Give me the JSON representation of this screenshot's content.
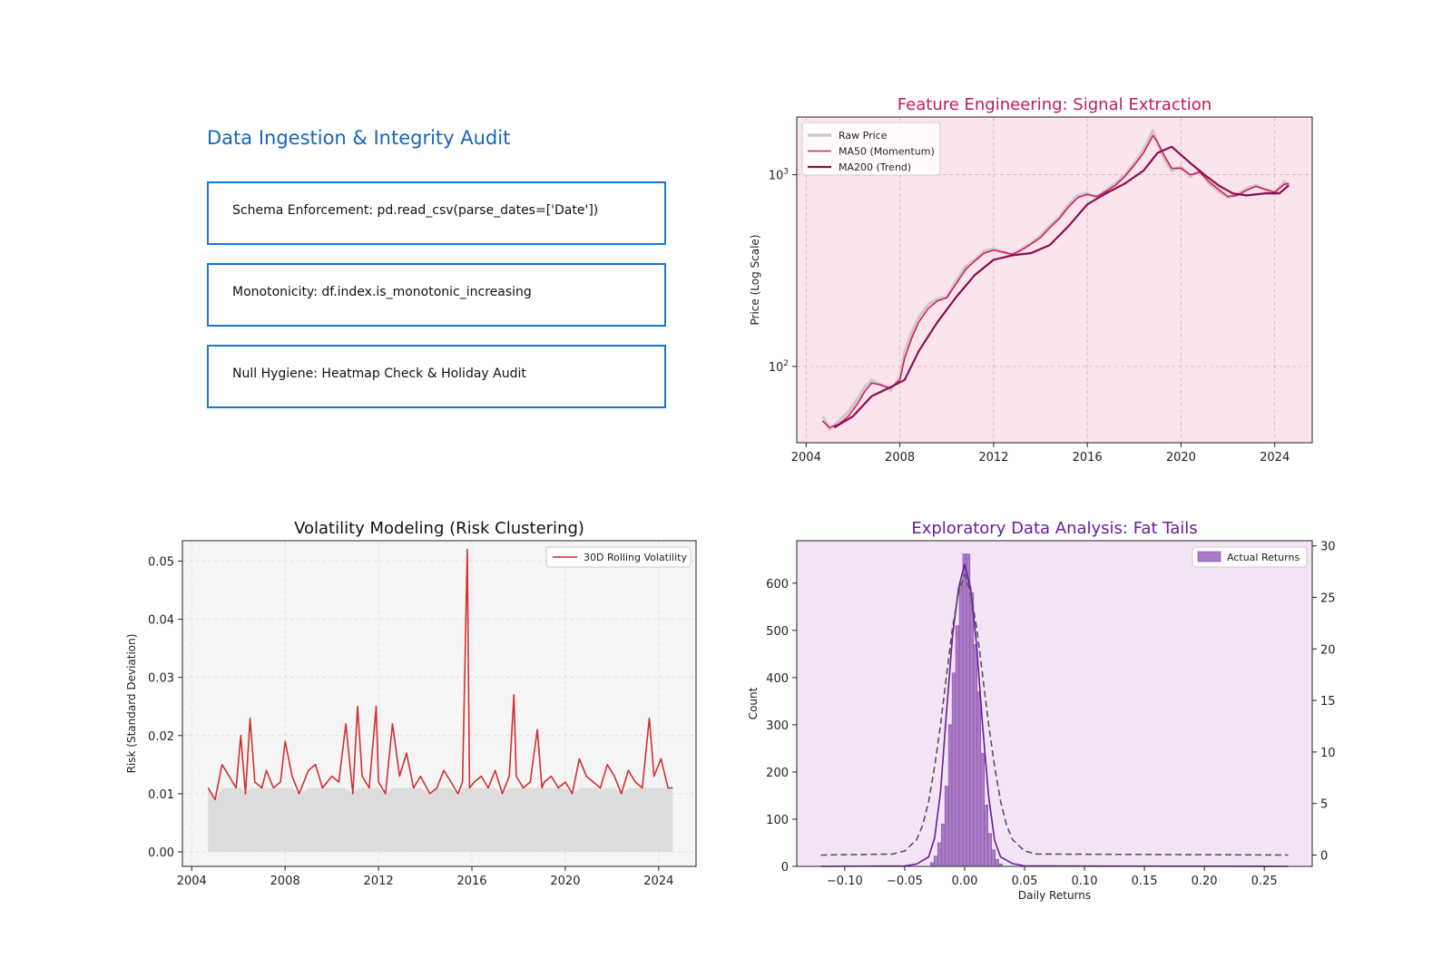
{
  "page": {
    "audit": {
      "title": "Data Ingestion & Integrity Audit",
      "checks": [
        "Schema Enforcement: pd.read_csv(parse_dates=['Date'])",
        "Monotonicity: df.index.is_monotonic_increasing",
        "Null Hygiene: Heatmap Check & Holiday Audit"
      ]
    }
  },
  "colors": {
    "audit_accent": "#1976d2",
    "feature_title": "#c2185b",
    "feature_bg": "#fce4ec",
    "raw_price": "#c9c9c9",
    "ma50": "#d81b60",
    "ma200": "#880e4f",
    "volatility_line": "#d32f2f",
    "volatility_fill": "#dddddd",
    "volatility_bg": "#f5f5f5",
    "eda_title": "#6a1b9a",
    "eda_bg": "#f3e5f5",
    "hist_fill": "#ab7bc8",
    "kde_line": "#6a1b9a",
    "normal_line": "#555555"
  },
  "chart_data": [
    {
      "type": "line",
      "id": "feature",
      "title": "Feature Engineering: Signal Extraction",
      "xlabel": "",
      "ylabel": "Price (Log Scale)",
      "yscale": "log",
      "xlim": [
        2003.6,
        2025.6
      ],
      "ylim": [
        40,
        2000
      ],
      "xticks": [
        2004,
        2008,
        2012,
        2016,
        2020,
        2024
      ],
      "yticks": [
        {
          "value": 100,
          "base": "10",
          "exp": "2"
        },
        {
          "value": 1000,
          "base": "10",
          "exp": "3"
        }
      ],
      "legend": [
        "Raw Price",
        "MA50 (Momentum)",
        "MA200 (Trend)"
      ],
      "series": [
        {
          "name": "Raw Price",
          "x": [
            2004.7,
            2005.0,
            2005.4,
            2005.8,
            2006.2,
            2006.5,
            2006.8,
            2007.2,
            2007.6,
            2008.0,
            2008.2,
            2008.5,
            2008.8,
            2009.2,
            2009.6,
            2010.0,
            2010.4,
            2010.8,
            2011.2,
            2011.6,
            2012.0,
            2012.4,
            2012.8,
            2013.2,
            2013.6,
            2014.0,
            2014.4,
            2014.8,
            2015.2,
            2015.6,
            2016.0,
            2016.4,
            2016.8,
            2017.2,
            2017.6,
            2018.0,
            2018.4,
            2018.8,
            2019.0,
            2019.3,
            2019.6,
            2020.0,
            2020.4,
            2020.8,
            2021.2,
            2021.6,
            2022.0,
            2022.4,
            2022.8,
            2023.2,
            2023.6,
            2024.0,
            2024.4,
            2024.6
          ],
          "y": [
            55,
            47,
            52,
            58,
            68,
            78,
            85,
            80,
            75,
            88,
            120,
            150,
            180,
            210,
            225,
            230,
            280,
            330,
            360,
            400,
            410,
            395,
            380,
            410,
            440,
            480,
            540,
            600,
            700,
            780,
            800,
            760,
            830,
            900,
            1000,
            1150,
            1350,
            1700,
            1450,
            1200,
            1050,
            1100,
            980,
            1050,
            900,
            820,
            760,
            790,
            850,
            880,
            830,
            800,
            920,
            880
          ]
        },
        {
          "name": "MA50 (Momentum)",
          "x": [
            2004.7,
            2005.0,
            2005.4,
            2005.8,
            2006.2,
            2006.5,
            2006.8,
            2007.2,
            2007.6,
            2008.0,
            2008.2,
            2008.5,
            2008.8,
            2009.2,
            2009.6,
            2010.0,
            2010.4,
            2010.8,
            2011.2,
            2011.6,
            2012.0,
            2012.4,
            2012.8,
            2013.2,
            2013.6,
            2014.0,
            2014.4,
            2014.8,
            2015.2,
            2015.6,
            2016.0,
            2016.4,
            2016.8,
            2017.2,
            2017.6,
            2018.0,
            2018.4,
            2018.8,
            2019.0,
            2019.3,
            2019.6,
            2020.0,
            2020.4,
            2020.8,
            2021.2,
            2021.6,
            2022.0,
            2022.4,
            2022.8,
            2023.2,
            2023.6,
            2024.0,
            2024.4,
            2024.6
          ],
          "y": [
            52,
            48,
            50,
            55,
            64,
            74,
            82,
            80,
            77,
            85,
            110,
            140,
            170,
            200,
            220,
            228,
            270,
            320,
            355,
            390,
            405,
            395,
            385,
            405,
            435,
            470,
            530,
            590,
            680,
            760,
            790,
            770,
            820,
            880,
            980,
            1120,
            1300,
            1600,
            1480,
            1250,
            1080,
            1080,
            1000,
            1030,
            920,
            840,
            770,
            780,
            830,
            870,
            840,
            810,
            890,
            900
          ]
        },
        {
          "name": "MA200 (Trend)",
          "x": [
            2005.2,
            2006.0,
            2006.8,
            2007.6,
            2008.2,
            2008.8,
            2009.6,
            2010.4,
            2011.2,
            2012.0,
            2012.8,
            2013.6,
            2014.4,
            2015.2,
            2016.0,
            2016.8,
            2017.6,
            2018.4,
            2019.0,
            2019.6,
            2020.4,
            2021.0,
            2021.6,
            2022.2,
            2022.8,
            2023.6,
            2024.2,
            2024.6
          ],
          "y": [
            48,
            55,
            70,
            78,
            85,
            120,
            170,
            230,
            300,
            360,
            380,
            390,
            430,
            540,
            700,
            800,
            900,
            1050,
            1300,
            1400,
            1150,
            1000,
            880,
            800,
            780,
            800,
            800,
            880
          ]
        }
      ]
    },
    {
      "type": "area",
      "id": "volatility",
      "title": "Volatility Modeling (Risk Clustering)",
      "xlabel": "",
      "ylabel": "Risk (Standard Deviation)",
      "xlim": [
        2003.6,
        2025.6
      ],
      "ylim": [
        -0.0025,
        0.0535
      ],
      "xticks": [
        2004,
        2008,
        2012,
        2016,
        2020,
        2024
      ],
      "yticks": [
        0.0,
        0.01,
        0.02,
        0.03,
        0.04,
        0.05
      ],
      "legend": [
        "30D Rolling Volatility"
      ],
      "series": [
        {
          "name": "30D Rolling Volatility",
          "x": [
            2004.7,
            2005.0,
            2005.3,
            2005.6,
            2005.9,
            2006.1,
            2006.3,
            2006.5,
            2006.7,
            2007.0,
            2007.2,
            2007.5,
            2007.8,
            2008.0,
            2008.3,
            2008.6,
            2009.0,
            2009.3,
            2009.6,
            2010.0,
            2010.3,
            2010.6,
            2010.9,
            2011.1,
            2011.3,
            2011.6,
            2011.9,
            2012.0,
            2012.3,
            2012.6,
            2012.9,
            2013.2,
            2013.5,
            2013.8,
            2014.2,
            2014.5,
            2014.8,
            2015.1,
            2015.4,
            2015.6,
            2015.8,
            2015.9,
            2016.1,
            2016.4,
            2016.7,
            2017.0,
            2017.3,
            2017.6,
            2017.8,
            2017.9,
            2018.2,
            2018.5,
            2018.8,
            2019.0,
            2019.1,
            2019.4,
            2019.7,
            2020.0,
            2020.3,
            2020.6,
            2020.9,
            2021.2,
            2021.5,
            2021.8,
            2022.1,
            2022.4,
            2022.7,
            2023.0,
            2023.3,
            2023.6,
            2023.8,
            2024.1,
            2024.4,
            2024.6
          ],
          "y": [
            0.011,
            0.009,
            0.015,
            0.013,
            0.011,
            0.02,
            0.01,
            0.023,
            0.012,
            0.011,
            0.014,
            0.011,
            0.012,
            0.019,
            0.013,
            0.01,
            0.014,
            0.015,
            0.011,
            0.013,
            0.012,
            0.022,
            0.01,
            0.025,
            0.013,
            0.011,
            0.025,
            0.012,
            0.01,
            0.022,
            0.013,
            0.017,
            0.011,
            0.013,
            0.01,
            0.011,
            0.014,
            0.012,
            0.01,
            0.012,
            0.052,
            0.011,
            0.012,
            0.013,
            0.011,
            0.014,
            0.01,
            0.013,
            0.027,
            0.013,
            0.011,
            0.012,
            0.021,
            0.011,
            0.012,
            0.013,
            0.011,
            0.012,
            0.01,
            0.016,
            0.013,
            0.012,
            0.011,
            0.015,
            0.013,
            0.01,
            0.014,
            0.012,
            0.011,
            0.023,
            0.013,
            0.016,
            0.011,
            0.011
          ]
        }
      ]
    },
    {
      "type": "bar",
      "id": "eda",
      "title": "Exploratory Data Analysis: Fat Tails",
      "xlabel": "Daily Returns",
      "ylabel": "Count",
      "xlim": [
        -0.14,
        0.29
      ],
      "ylim": [
        0,
        690
      ],
      "xticks": [
        -0.1,
        -0.05,
        0.0,
        0.05,
        0.1,
        0.15,
        0.2,
        0.25
      ],
      "xticklabels": [
        "−0.10",
        "−0.05",
        "0.00",
        "0.05",
        "0.10",
        "0.15",
        "0.20",
        "0.25"
      ],
      "yticks": [
        0,
        100,
        200,
        300,
        400,
        500,
        600
      ],
      "y2lim": [
        -1.1,
        30.5
      ],
      "y2ticks": [
        0,
        5,
        10,
        15,
        20,
        25,
        30
      ],
      "legend": [
        "Actual Returns"
      ],
      "bins": {
        "centers": [
          -0.027,
          -0.024,
          -0.021,
          -0.018,
          -0.015,
          -0.012,
          -0.009,
          -0.006,
          -0.003,
          0.0,
          0.003,
          0.006,
          0.009,
          0.012,
          0.015,
          0.018,
          0.021,
          0.024,
          0.027,
          0.03
        ],
        "counts": [
          8,
          22,
          50,
          90,
          170,
          300,
          410,
          510,
          600,
          662,
          662,
          580,
          470,
          370,
          240,
          130,
          70,
          35,
          15,
          5
        ],
        "width": 0.003
      },
      "kde": {
        "x": [
          -0.12,
          -0.05,
          -0.04,
          -0.03,
          -0.025,
          -0.02,
          -0.015,
          -0.01,
          -0.005,
          0.0,
          0.005,
          0.01,
          0.015,
          0.02,
          0.025,
          0.03,
          0.04,
          0.05,
          0.27
        ],
        "y": [
          0,
          1,
          5,
          20,
          60,
          160,
          330,
          490,
          590,
          640,
          590,
          470,
          300,
          150,
          55,
          20,
          6,
          1,
          0
        ]
      },
      "normal": {
        "x": [
          -0.12,
          -0.06,
          -0.05,
          -0.04,
          -0.035,
          -0.03,
          -0.025,
          -0.02,
          -0.015,
          -0.01,
          -0.005,
          0.0,
          0.005,
          0.01,
          0.015,
          0.02,
          0.025,
          0.03,
          0.035,
          0.04,
          0.05,
          0.06,
          0.27
        ],
        "y": [
          0,
          0.1,
          0.4,
          1.5,
          2.9,
          5.2,
          8.6,
          12.7,
          17.5,
          22.1,
          25.5,
          27.2,
          25.5,
          22.1,
          17.5,
          12.7,
          8.6,
          5.2,
          2.9,
          1.5,
          0.4,
          0.1,
          0
        ]
      }
    }
  ]
}
